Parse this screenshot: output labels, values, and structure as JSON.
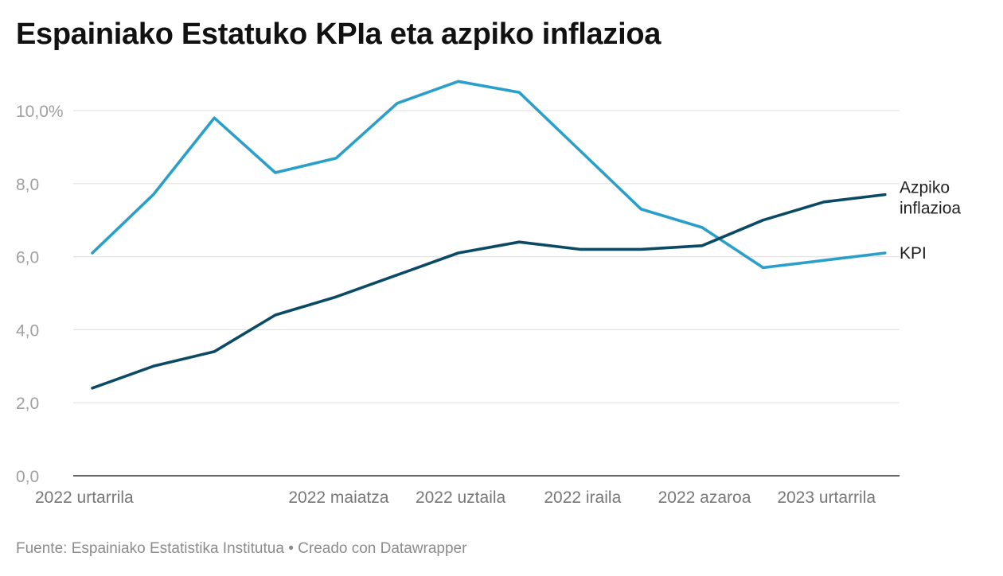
{
  "title": "Espainiako Estatuko KPIa eta azpiko inflazioa",
  "footer": {
    "source": "Fuente: Espainiako Estatistika Institutua",
    "separator": "•",
    "credit": "Creado con Datawrapper"
  },
  "colors": {
    "kpi": "#2a9fc9",
    "azpiko": "#0b4a64",
    "grid": "#e3e3e3",
    "axis": "#333333",
    "tick_y": "#a0a0a0",
    "tick_x": "#777777",
    "label": "#222222"
  },
  "chart_data": {
    "type": "line",
    "title": "Espainiako Estatuko KPIa eta azpiko inflazioa",
    "xlabel": "",
    "ylabel": "",
    "ylim": [
      0,
      11
    ],
    "grid": true,
    "x": [
      "2022-01",
      "2022-02",
      "2022-03",
      "2022-04",
      "2022-05",
      "2022-06",
      "2022-07",
      "2022-08",
      "2022-09",
      "2022-10",
      "2022-11",
      "2022-12",
      "2023-01",
      "2023-02"
    ],
    "y_ticks": [
      0,
      2,
      4,
      6,
      8,
      10
    ],
    "y_tick_labels": [
      "0,0",
      "2,0",
      "4,0",
      "6,0",
      "8,0",
      "10,0%"
    ],
    "x_ticks": [
      {
        "index": 0,
        "label": "2022 urtarrila"
      },
      {
        "index": 4,
        "label": "2022 maiatza"
      },
      {
        "index": 6,
        "label": "2022 uztaila"
      },
      {
        "index": 8,
        "label": "2022 iraila"
      },
      {
        "index": 10,
        "label": "2022 azaroa"
      },
      {
        "index": 12,
        "label": "2023 urtarrila"
      }
    ],
    "series": [
      {
        "name": "KPI",
        "label_lines": [
          "KPI"
        ],
        "color_key": "kpi",
        "values": [
          6.1,
          7.7,
          9.8,
          8.3,
          8.7,
          10.2,
          10.8,
          10.5,
          8.9,
          7.3,
          6.8,
          5.7,
          5.9,
          6.1
        ]
      },
      {
        "name": "Azpiko inflazioa",
        "label_lines": [
          "Azpiko",
          "inflazioa"
        ],
        "color_key": "azpiko",
        "values": [
          2.4,
          3.0,
          3.4,
          4.4,
          4.9,
          5.5,
          6.1,
          6.4,
          6.2,
          6.2,
          6.3,
          7.0,
          7.5,
          7.7
        ]
      }
    ],
    "legend": "direct labels at line ends (right)"
  }
}
